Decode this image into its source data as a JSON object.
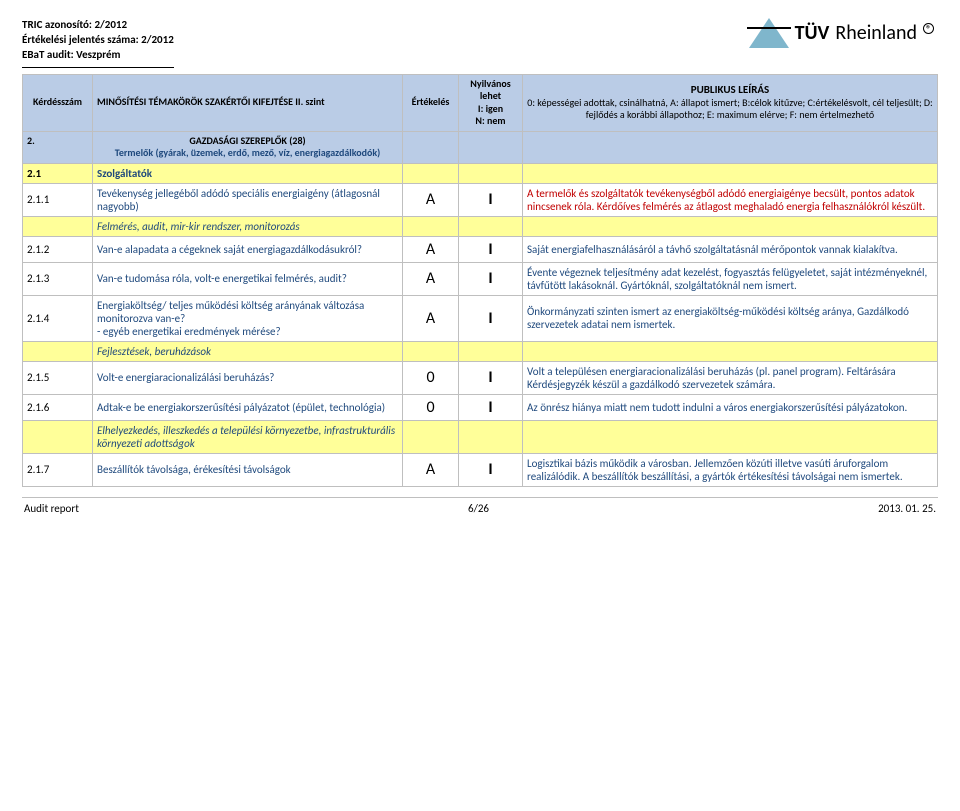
{
  "header": {
    "tric_id": "TRIC azonosító: 2/2012",
    "report_no": "Értékelési  jelentés száma: 2/2012",
    "audit": "EBaT audit: Veszprém",
    "brand_prefix": "TÜV",
    "brand_suffix": "Rheinland"
  },
  "colhead": {
    "num": "Kérdésszám",
    "topic": "MINŐSÍTÉSI TÉMAKÖRÖK SZAKÉRTŐI KIFEJTÉSE II. szint",
    "eval": "Értékelés",
    "pub_line1": "Nyilvános",
    "pub_line2": "lehet",
    "pub_line3": "I: igen",
    "pub_line4": "N: nem",
    "legend_title": "PUBLIKUS LEÍRÁS",
    "legend_body": "0: képességei adottak, csinálhatná, A: állapot ismert; B:célok kitűzve; C:értékelésvolt, cél teljesült; D: fejlődés a korábbi állapothoz; E: maximum elérve; F: nem értelmezhető"
  },
  "section": {
    "num": "2.",
    "title_line1": "GAZDASÁGI SZEREPLŐK      (28)",
    "title_line2": "Termelők (gyárak, üzemek, erdő, mező, víz, energiagazdálkodók)"
  },
  "sub21": {
    "num": "2.1",
    "title": "Szolgáltatók"
  },
  "rows": [
    {
      "num": "2.1.1",
      "topic": "Tevékenység jellegéből adódó speciális energiaigény (átlagosnál nagyobb)",
      "eval": "A",
      "pub": "I",
      "desc": "A termelők és szolgáltatók tevékenységből adódó energiaigénye becsült, pontos adatok nincsenek róla. Kérdőíves felmérés az átlagost meghaladó energia felhasználókról készült.",
      "desc_style": "red"
    },
    {
      "subhead": "Felmérés, audit, mir-kir rendszer, monitorozás"
    },
    {
      "num": "2.1.2",
      "topic": "Van-e alapadata a cégeknek saját energiagazdálkodásukról?",
      "eval": "A",
      "pub": "I",
      "desc": "Saját energiafelhasználásáról a távhő szolgáltatásnál mérőpontok vannak kialakítva.",
      "desc_style": "blue"
    },
    {
      "num": "2.1.3",
      "topic": "Van-e tudomása róla, volt-e energetikai felmérés, audit?",
      "eval": "A",
      "pub": "I",
      "desc": "Évente végeznek teljesítmény adat kezelést, fogyasztás felügyeletet, saját intézményeknél, távfűtött lakásoknál. Gyártóknál, szolgáltatóknál nem ismert.",
      "desc_style": "blue"
    },
    {
      "num": "2.1.4",
      "topic": "Energiaköltség/ teljes működési költség arányának változása monitorozva van-e?\n- egyéb energetikai eredmények mérése?",
      "eval": "A",
      "pub": "I",
      "desc": "Önkormányzati szinten ismert az energiaköltség-működési költség aránya, Gazdálkodó szervezetek adatai nem ismertek.",
      "desc_style": "blue"
    },
    {
      "subhead": "Fejlesztések, beruházások"
    },
    {
      "num": "2.1.5",
      "topic": "Volt-e energiaracionalizálási beruházás?",
      "eval": "0",
      "pub": "I",
      "desc": "Volt a településen energiaracionalizálási beruházás (pl. panel program). Feltárására Kérdésjegyzék készül a gazdálkodó szervezetek számára.",
      "desc_style": "blue"
    },
    {
      "num": "2.1.6",
      "topic": "Adtak-e be energiakorszerűsítési pályázatot (épület, technológia)",
      "eval": "0",
      "pub": "I",
      "desc": "Az önrész hiánya miatt nem tudott indulni a város energiakorszerűsítési pályázatokon.",
      "desc_style": "blue"
    },
    {
      "subhead": "Elhelyezkedés, illeszkedés a települési környezetbe, infrastrukturális környezeti adottságok"
    },
    {
      "num": "2.1.7",
      "topic": "Beszállítók távolsága, érékesítési távolságok",
      "eval": "A",
      "pub": "I",
      "desc": "Logisztikai bázis működik a városban. Jellemzően közúti illetve vasúti áruforgalom realizálódik. A beszállítók beszállítási, a gyártók értékesítési távolságai nem ismertek.",
      "desc_style": "blue"
    }
  ],
  "footer": {
    "left": "Audit report",
    "center": "6/26",
    "right": "2013. 01. 25."
  },
  "colors": {
    "header_bg": "#bacce6",
    "yellow_bg": "#ffff99",
    "border": "#bfbfbf",
    "blue_text": "#1f497d",
    "red_text": "#c00000",
    "logo_triangle": "#7fb6cc"
  }
}
